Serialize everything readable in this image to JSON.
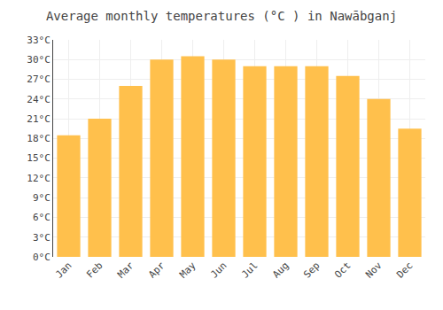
{
  "chart_data": {
    "type": "bar",
    "title": "Average monthly temperatures (°C ) in Nawābganj",
    "categories": [
      "Jan",
      "Feb",
      "Mar",
      "Apr",
      "May",
      "Jun",
      "Jul",
      "Aug",
      "Sep",
      "Oct",
      "Nov",
      "Dec"
    ],
    "values": [
      18.5,
      21.0,
      26.0,
      30.0,
      30.5,
      30.0,
      29.0,
      29.0,
      29.0,
      27.5,
      24.0,
      19.5
    ],
    "color": "#FFC04C",
    "ylim": [
      0,
      33
    ],
    "yticks": [
      {
        "value": 0,
        "label": "0°C"
      },
      {
        "value": 3,
        "label": "3°C"
      },
      {
        "value": 6,
        "label": "6°C"
      },
      {
        "value": 9,
        "label": "9°C"
      },
      {
        "value": 12,
        "label": "12°C"
      },
      {
        "value": 15,
        "label": "15°C"
      },
      {
        "value": 18,
        "label": "18°C"
      },
      {
        "value": 21,
        "label": "21°C"
      },
      {
        "value": 24,
        "label": "24°C"
      },
      {
        "value": 27,
        "label": "27°C"
      },
      {
        "value": 30,
        "label": "30°C"
      },
      {
        "value": 33,
        "label": "33°C"
      }
    ],
    "grid": true
  }
}
